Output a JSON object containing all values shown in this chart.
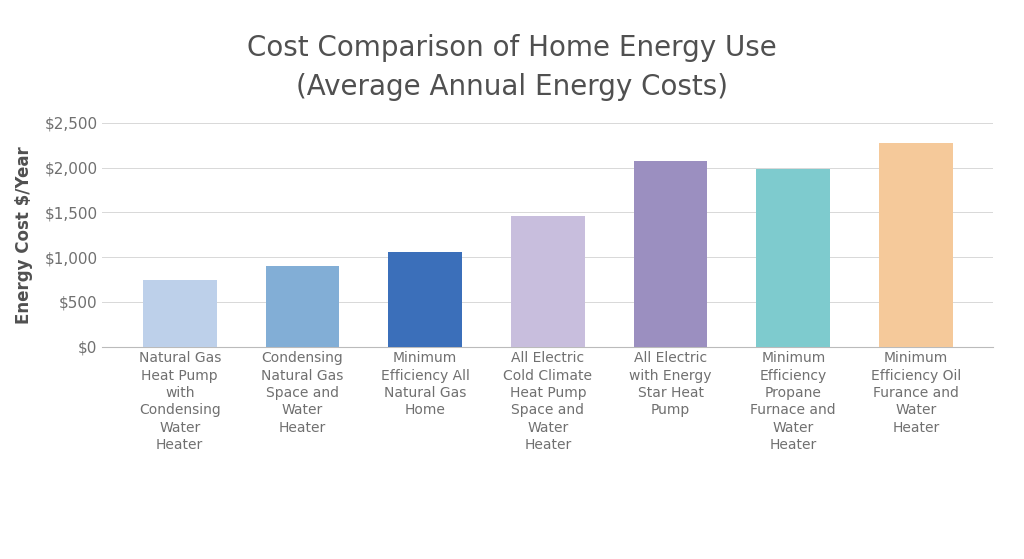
{
  "categories": [
    "Natural Gas\nHeat Pump\nwith\nCondensing\nWater\nHeater",
    "Condensing\nNatural Gas\nSpace and\nWater\nHeater",
    "Minimum\nEfficiency All\nNatural Gas\nHome",
    "All Electric\nCold Climate\nHeat Pump\nSpace and\nWater\nHeater",
    "All Electric\nwith Energy\nStar Heat\nPump",
    "Minimum\nEfficiency\nPropane\nFurnace and\nWater\nHeater",
    "Minimum\nEfficiency Oil\nFurance and\nWater\nHeater"
  ],
  "values": [
    750,
    900,
    1060,
    1460,
    2080,
    1990,
    2280
  ],
  "bar_colors": [
    "#bdd0ea",
    "#82aed6",
    "#3b6fba",
    "#c8bedd",
    "#9b8fc0",
    "#7ecbce",
    "#f5c99a"
  ],
  "title_line1": "Cost Comparison of Home Energy Use",
  "title_line2": "(Average Annual Energy Costs)",
  "ylabel": "Energy Cost $/Year",
  "ylim": [
    0,
    2500
  ],
  "yticks": [
    0,
    500,
    1000,
    1500,
    2000,
    2500
  ],
  "ytick_labels": [
    "$0",
    "$500",
    "$1,000",
    "$1,500",
    "$2,000",
    "$2,500"
  ],
  "background_color": "#ffffff",
  "grid_color": "#d8d8d8",
  "title_color": "#505050",
  "label_color": "#505050",
  "tick_color": "#707070"
}
